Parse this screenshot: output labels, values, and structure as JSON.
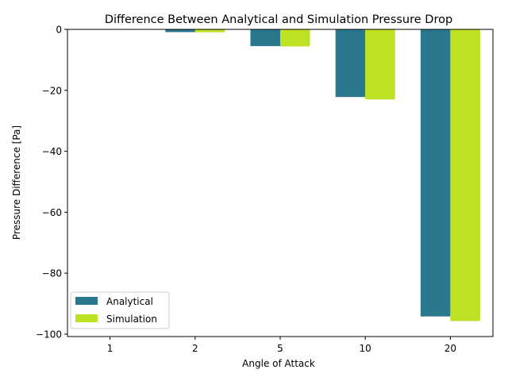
{
  "chart_data": {
    "type": "bar",
    "title": "Difference Between Analytical and Simulation Pressure Drop",
    "xlabel": "Angle of Attack",
    "ylabel": "Pressure Difference [Pa]",
    "categories": [
      "1",
      "2",
      "5",
      "10",
      "20"
    ],
    "series": [
      {
        "name": "Analytical",
        "color": "#2a788e",
        "values": [
          -0.05,
          -0.9,
          -5.5,
          -22.2,
          -94.2
        ]
      },
      {
        "name": "Simulation",
        "color": "#bde123",
        "values": [
          -0.05,
          -0.95,
          -5.6,
          -23.0,
          -95.7
        ]
      }
    ],
    "ylim": [
      -100.8,
      0
    ],
    "yticks": [
      0,
      -20,
      -40,
      -60,
      -80,
      -100
    ],
    "ytick_labels": [
      "0",
      "−20",
      "−40",
      "−60",
      "−80",
      "−100"
    ],
    "grid": false,
    "legend_position": "lower-left"
  }
}
